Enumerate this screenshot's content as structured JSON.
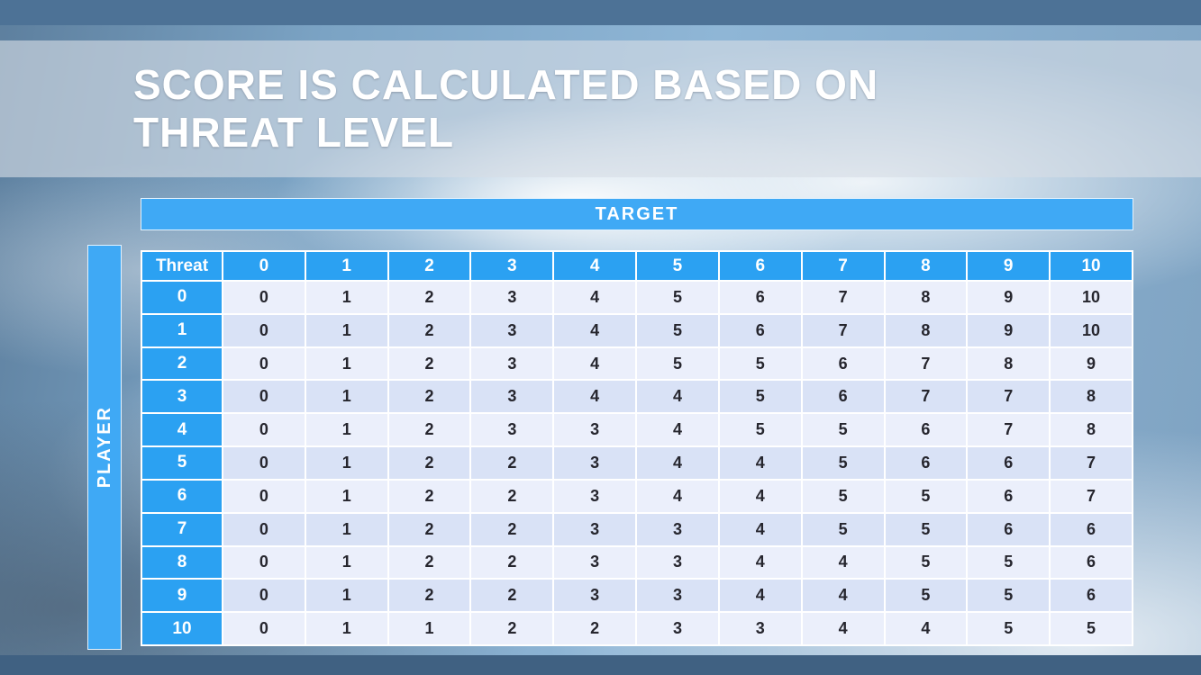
{
  "slide": {
    "title_line1": "SCORE IS CALCULATED BASED ON",
    "title_line2": "THREAT LEVEL"
  },
  "matrix": {
    "target_label": "TARGET",
    "player_label": "PLAYER",
    "corner_label": "Threat",
    "column_headers": [
      "0",
      "1",
      "2",
      "3",
      "4",
      "5",
      "6",
      "7",
      "8",
      "9",
      "10"
    ],
    "rows": [
      {
        "threat": "0",
        "values": [
          "0",
          "1",
          "2",
          "3",
          "4",
          "5",
          "6",
          "7",
          "8",
          "9",
          "10"
        ]
      },
      {
        "threat": "1",
        "values": [
          "0",
          "1",
          "2",
          "3",
          "4",
          "5",
          "6",
          "7",
          "8",
          "9",
          "10"
        ]
      },
      {
        "threat": "2",
        "values": [
          "0",
          "1",
          "2",
          "3",
          "4",
          "5",
          "5",
          "6",
          "7",
          "8",
          "9"
        ]
      },
      {
        "threat": "3",
        "values": [
          "0",
          "1",
          "2",
          "3",
          "4",
          "4",
          "5",
          "6",
          "7",
          "7",
          "8"
        ]
      },
      {
        "threat": "4",
        "values": [
          "0",
          "1",
          "2",
          "3",
          "3",
          "4",
          "5",
          "5",
          "6",
          "7",
          "8"
        ]
      },
      {
        "threat": "5",
        "values": [
          "0",
          "1",
          "2",
          "2",
          "3",
          "4",
          "4",
          "5",
          "6",
          "6",
          "7"
        ]
      },
      {
        "threat": "6",
        "values": [
          "0",
          "1",
          "2",
          "2",
          "3",
          "4",
          "4",
          "5",
          "5",
          "6",
          "7"
        ]
      },
      {
        "threat": "7",
        "values": [
          "0",
          "1",
          "2",
          "2",
          "3",
          "3",
          "4",
          "5",
          "5",
          "6",
          "6"
        ]
      },
      {
        "threat": "8",
        "values": [
          "0",
          "1",
          "2",
          "2",
          "3",
          "3",
          "4",
          "4",
          "5",
          "5",
          "6"
        ]
      },
      {
        "threat": "9",
        "values": [
          "0",
          "1",
          "2",
          "2",
          "3",
          "3",
          "4",
          "4",
          "5",
          "5",
          "6"
        ]
      },
      {
        "threat": "10",
        "values": [
          "0",
          "1",
          "1",
          "2",
          "2",
          "3",
          "3",
          "4",
          "4",
          "5",
          "5"
        ]
      }
    ]
  },
  "chart_data": {
    "type": "table",
    "title": "Score is calculated based on threat level",
    "xlabel": "TARGET",
    "ylabel": "PLAYER (Threat)",
    "categories": [
      "0",
      "1",
      "2",
      "3",
      "4",
      "5",
      "6",
      "7",
      "8",
      "9",
      "10"
    ],
    "series": [
      {
        "name": "0",
        "values": [
          0,
          1,
          2,
          3,
          4,
          5,
          6,
          7,
          8,
          9,
          10
        ]
      },
      {
        "name": "1",
        "values": [
          0,
          1,
          2,
          3,
          4,
          5,
          6,
          7,
          8,
          9,
          10
        ]
      },
      {
        "name": "2",
        "values": [
          0,
          1,
          2,
          3,
          4,
          5,
          5,
          6,
          7,
          8,
          9
        ]
      },
      {
        "name": "3",
        "values": [
          0,
          1,
          2,
          3,
          4,
          4,
          5,
          6,
          7,
          7,
          8
        ]
      },
      {
        "name": "4",
        "values": [
          0,
          1,
          2,
          3,
          3,
          4,
          5,
          5,
          6,
          7,
          8
        ]
      },
      {
        "name": "5",
        "values": [
          0,
          1,
          2,
          2,
          3,
          4,
          4,
          5,
          6,
          6,
          7
        ]
      },
      {
        "name": "6",
        "values": [
          0,
          1,
          2,
          2,
          3,
          4,
          4,
          5,
          5,
          6,
          7
        ]
      },
      {
        "name": "7",
        "values": [
          0,
          1,
          2,
          2,
          3,
          3,
          4,
          5,
          5,
          6,
          6
        ]
      },
      {
        "name": "8",
        "values": [
          0,
          1,
          2,
          2,
          3,
          3,
          4,
          4,
          5,
          5,
          6
        ]
      },
      {
        "name": "9",
        "values": [
          0,
          1,
          2,
          2,
          3,
          3,
          4,
          4,
          5,
          5,
          6
        ]
      },
      {
        "name": "10",
        "values": [
          0,
          1,
          1,
          2,
          2,
          3,
          3,
          4,
          4,
          5,
          5
        ]
      }
    ]
  },
  "colors": {
    "accent_blue": "#2ba1f2",
    "header_blue": "#3fa9f5",
    "row_light": "#ebeffb",
    "row_dark": "#d9e2f6",
    "top_bar": "#4d7296",
    "bottom_bar": "#406182",
    "cell_text": "#26262e"
  }
}
